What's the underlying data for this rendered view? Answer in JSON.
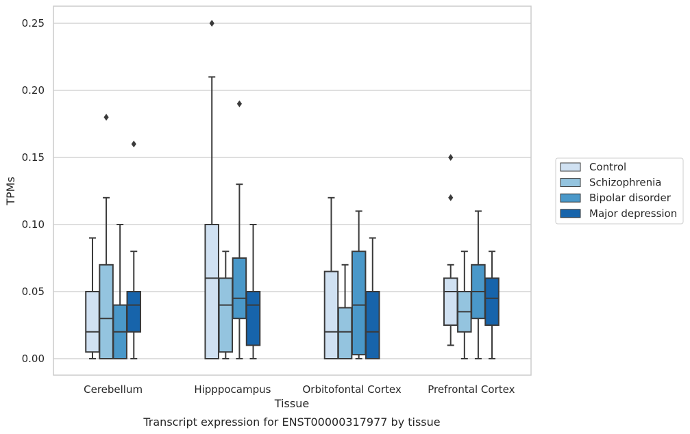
{
  "chart_data": {
    "type": "box",
    "title": "",
    "caption": "Transcript expression for ENST00000317977 by tissue",
    "xlabel": "Tissue",
    "ylabel": "TPMs",
    "ylim": [
      -0.012,
      0.263
    ],
    "yticks": [
      0.0,
      0.05,
      0.1,
      0.15,
      0.2,
      0.25
    ],
    "ytick_labels": [
      "0.00",
      "0.05",
      "0.10",
      "0.15",
      "0.20",
      "0.25"
    ],
    "grid": true,
    "legend_position": "right",
    "categories": [
      "Cerebellum",
      "Hipppocampus",
      "Orbitofontal Cortex",
      "Prefrontal Cortex"
    ],
    "series": [
      {
        "name": "Control",
        "color": "#d0e1f2",
        "boxes": [
          {
            "min": 0.0,
            "q1": 0.005,
            "median": 0.02,
            "q3": 0.05,
            "max": 0.09,
            "outliers": []
          },
          {
            "min": 0.0,
            "q1": 0.0,
            "median": 0.06,
            "q3": 0.1,
            "max": 0.21,
            "outliers": [
              0.25
            ]
          },
          {
            "min": 0.0,
            "q1": 0.0,
            "median": 0.02,
            "q3": 0.065,
            "max": 0.12,
            "outliers": []
          },
          {
            "min": 0.01,
            "q1": 0.025,
            "median": 0.05,
            "q3": 0.06,
            "max": 0.07,
            "outliers": [
              0.12,
              0.15
            ]
          }
        ]
      },
      {
        "name": "Schizophrenia",
        "color": "#94c4df",
        "boxes": [
          {
            "min": 0.0,
            "q1": 0.0,
            "median": 0.03,
            "q3": 0.07,
            "max": 0.12,
            "outliers": [
              0.18
            ]
          },
          {
            "min": 0.0,
            "q1": 0.005,
            "median": 0.04,
            "q3": 0.06,
            "max": 0.08,
            "outliers": []
          },
          {
            "min": 0.0,
            "q1": 0.0,
            "median": 0.02,
            "q3": 0.038,
            "max": 0.07,
            "outliers": []
          },
          {
            "min": 0.0,
            "q1": 0.02,
            "median": 0.035,
            "q3": 0.05,
            "max": 0.08,
            "outliers": []
          }
        ]
      },
      {
        "name": "Bipolar disorder",
        "color": "#4a98c9",
        "boxes": [
          {
            "min": 0.0,
            "q1": 0.0,
            "median": 0.02,
            "q3": 0.04,
            "max": 0.1,
            "outliers": []
          },
          {
            "min": 0.0,
            "q1": 0.03,
            "median": 0.045,
            "q3": 0.075,
            "max": 0.13,
            "outliers": [
              0.19
            ]
          },
          {
            "min": 0.0,
            "q1": 0.003,
            "median": 0.04,
            "q3": 0.08,
            "max": 0.11,
            "outliers": []
          },
          {
            "min": 0.0,
            "q1": 0.03,
            "median": 0.05,
            "q3": 0.07,
            "max": 0.11,
            "outliers": []
          }
        ]
      },
      {
        "name": "Major depression",
        "color": "#1764ab",
        "boxes": [
          {
            "min": 0.0,
            "q1": 0.02,
            "median": 0.04,
            "q3": 0.05,
            "max": 0.08,
            "outliers": [
              0.16
            ]
          },
          {
            "min": 0.0,
            "q1": 0.01,
            "median": 0.04,
            "q3": 0.05,
            "max": 0.1,
            "outliers": []
          },
          {
            "min": 0.0,
            "q1": 0.0,
            "median": 0.02,
            "q3": 0.05,
            "max": 0.09,
            "outliers": []
          },
          {
            "min": 0.0,
            "q1": 0.025,
            "median": 0.045,
            "q3": 0.06,
            "max": 0.08,
            "outliers": []
          }
        ]
      }
    ]
  }
}
